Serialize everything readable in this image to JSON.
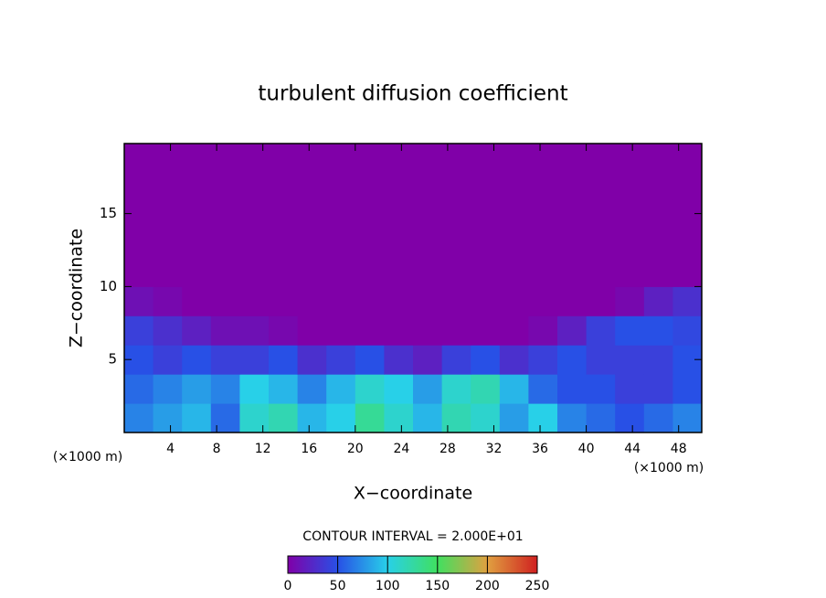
{
  "chart_data": {
    "type": "heatmap",
    "title": "turbulent diffusion coefficient",
    "xlabel": "X−coordinate",
    "ylabel": "Z−coordinate",
    "x_units": "(×1000 m)",
    "y_units": "(×1000 m)",
    "annotation": "CONTOUR INTERVAL = 2.000E+01",
    "xlim": [
      0,
      50
    ],
    "ylim": [
      0,
      19.8
    ],
    "xticks": [
      4,
      8,
      12,
      16,
      20,
      24,
      28,
      32,
      36,
      40,
      44,
      48
    ],
    "yticks": [
      5,
      10,
      15
    ],
    "x": [
      1.25,
      3.75,
      6.25,
      8.75,
      11.25,
      13.75,
      16.25,
      18.75,
      21.25,
      23.75,
      26.25,
      28.75,
      31.25,
      33.75,
      36.25,
      38.75,
      41.25,
      43.75,
      46.25,
      48.75
    ],
    "y": [
      1,
      3,
      5,
      7,
      9,
      11,
      13,
      15,
      17,
      19
    ],
    "z": [
      [
        70,
        80,
        90,
        60,
        110,
        120,
        90,
        100,
        130,
        110,
        90,
        120,
        110,
        80,
        100,
        70,
        60,
        50,
        60,
        70
      ],
      [
        60,
        70,
        80,
        70,
        100,
        90,
        70,
        90,
        110,
        100,
        80,
        110,
        120,
        90,
        60,
        50,
        50,
        40,
        40,
        50
      ],
      [
        50,
        40,
        50,
        40,
        40,
        50,
        30,
        40,
        50,
        30,
        20,
        40,
        50,
        30,
        40,
        50,
        40,
        40,
        40,
        50
      ],
      [
        40,
        30,
        20,
        10,
        10,
        5,
        0,
        0,
        0,
        0,
        0,
        0,
        0,
        0,
        5,
        20,
        40,
        50,
        50,
        45
      ],
      [
        10,
        5,
        0,
        0,
        0,
        0,
        0,
        0,
        0,
        0,
        0,
        0,
        0,
        0,
        0,
        0,
        0,
        5,
        20,
        30
      ],
      [
        0,
        0,
        0,
        0,
        0,
        0,
        0,
        0,
        0,
        0,
        0,
        0,
        0,
        0,
        0,
        0,
        0,
        0,
        0,
        0
      ],
      [
        0,
        0,
        0,
        0,
        0,
        0,
        0,
        0,
        0,
        0,
        0,
        0,
        0,
        0,
        0,
        0,
        0,
        0,
        0,
        0
      ],
      [
        0,
        0,
        0,
        0,
        0,
        0,
        0,
        0,
        0,
        0,
        0,
        0,
        0,
        0,
        0,
        0,
        0,
        0,
        0,
        0
      ],
      [
        0,
        0,
        0,
        0,
        0,
        0,
        0,
        0,
        0,
        0,
        0,
        0,
        0,
        0,
        0,
        0,
        0,
        0,
        0,
        0
      ],
      [
        0,
        0,
        0,
        0,
        0,
        0,
        0,
        0,
        0,
        0,
        0,
        0,
        0,
        0,
        0,
        0,
        0,
        0,
        0,
        0
      ]
    ],
    "colorbar_lim": [
      0,
      250
    ],
    "colorbar_ticks": [
      0,
      50,
      100,
      150,
      200,
      250
    ],
    "colorscale": [
      "#8000a8",
      "#2850e6",
      "#28d0e8",
      "#40e060",
      "#e0a040",
      "#d02020"
    ]
  }
}
